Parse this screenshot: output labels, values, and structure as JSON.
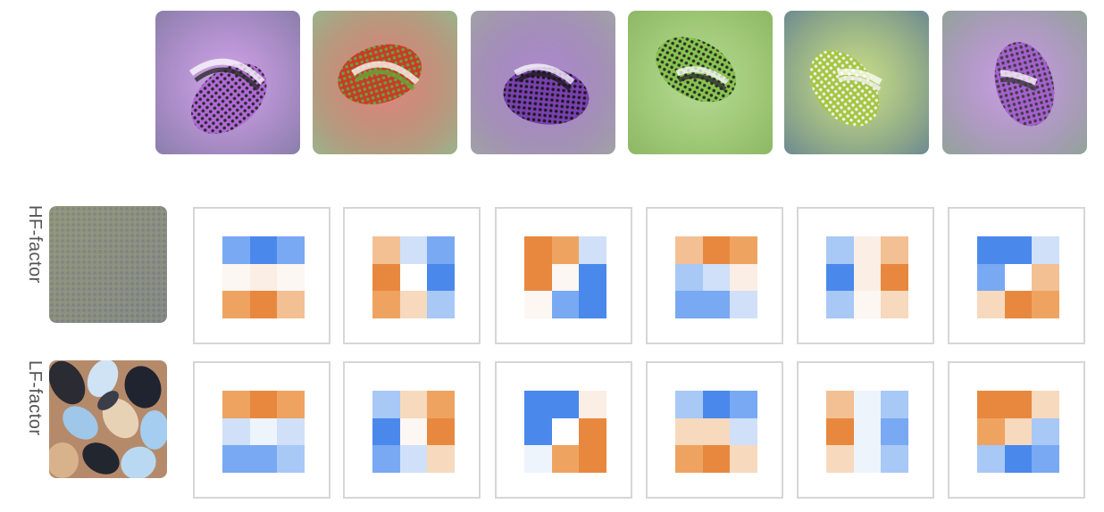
{
  "labels": {
    "hf": "HF-factor",
    "lf": "LF-factor"
  },
  "colors": {
    "orange_strong": "#e8883e",
    "orange": "#eea460",
    "orange_light": "#f3c094",
    "orange_pale": "#f7d9bd",
    "cream": "#fbeee4",
    "near_white": "#fcf7f3",
    "white": "#ffffff",
    "blue_pale": "#eef4fc",
    "blue_light": "#cfe0f8",
    "blue_soft": "#a8c8f6",
    "blue": "#78a9f2",
    "blue_strong": "#4a88ec"
  },
  "top_visualizations": [
    {
      "base": "#8a7faa",
      "blob": "#b06ad6",
      "accent": "#2a2a2a"
    },
    {
      "base": "#9bb38c",
      "blob": "#c93a2a",
      "accent": "#67a63a"
    },
    {
      "base": "#a2a2a6",
      "blob": "#7a3fb0",
      "accent": "#1a1a1a"
    },
    {
      "base": "#8fb866",
      "blob": "#87c44e",
      "accent": "#2d2d2d"
    },
    {
      "base": "#6e8a92",
      "blob": "#a4c640",
      "accent": "#f1f1f1"
    },
    {
      "base": "#93a39a",
      "blob": "#a660d0",
      "accent": "#3e3e3e"
    }
  ],
  "hf_kernels": [
    [
      "blue",
      "blue_strong",
      "blue",
      "near_white",
      "cream",
      "near_white",
      "orange",
      "orange_strong",
      "orange_light"
    ],
    [
      "orange_light",
      "blue_light",
      "blue",
      "orange_strong",
      "white",
      "blue_strong",
      "orange",
      "orange_pale",
      "blue_soft"
    ],
    [
      "orange_strong",
      "orange",
      "blue_light",
      "orange_strong",
      "near_white",
      "blue_strong",
      "near_white",
      "blue",
      "blue_strong"
    ],
    [
      "orange_light",
      "orange_strong",
      "orange",
      "blue_soft",
      "blue_light",
      "cream",
      "blue",
      "blue",
      "blue_light"
    ],
    [
      "blue_soft",
      "cream",
      "orange_light",
      "blue_strong",
      "cream",
      "orange_strong",
      "blue_soft",
      "near_white",
      "orange_pale"
    ],
    [
      "blue_strong",
      "blue_strong",
      "blue_light",
      "blue",
      "white",
      "orange_light",
      "orange_pale",
      "orange_strong",
      "orange"
    ]
  ],
  "lf_kernels": [
    [
      "orange",
      "orange_strong",
      "orange",
      "blue_light",
      "blue_pale",
      "blue_light",
      "blue",
      "blue",
      "blue_soft"
    ],
    [
      "blue_soft",
      "orange_pale",
      "orange",
      "blue_strong",
      "near_white",
      "orange_strong",
      "blue",
      "blue_light",
      "orange_pale"
    ],
    [
      "blue_strong",
      "blue_strong",
      "cream",
      "blue_strong",
      "white",
      "orange_strong",
      "blue_pale",
      "orange",
      "orange_strong"
    ],
    [
      "blue_soft",
      "blue_strong",
      "blue",
      "orange_pale",
      "orange_pale",
      "blue_light",
      "orange",
      "orange_strong",
      "orange_pale"
    ],
    [
      "orange_light",
      "blue_pale",
      "blue_soft",
      "orange_strong",
      "blue_pale",
      "blue",
      "orange_pale",
      "blue_pale",
      "blue_soft"
    ],
    [
      "orange_strong",
      "orange_strong",
      "orange_pale",
      "orange",
      "orange_pale",
      "blue_soft",
      "blue_soft",
      "blue_strong",
      "blue"
    ]
  ]
}
